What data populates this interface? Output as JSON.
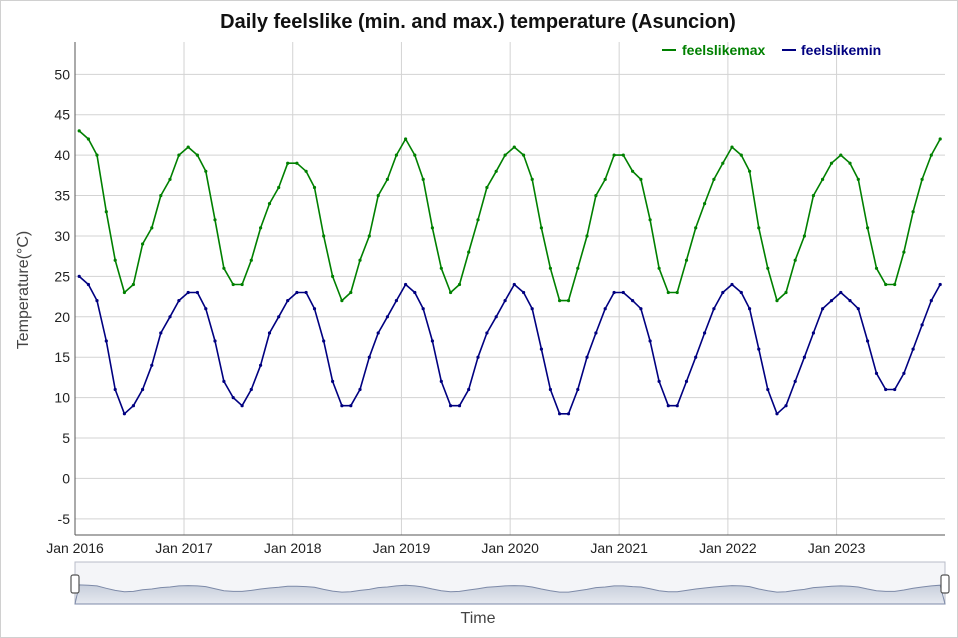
{
  "chart_data": {
    "type": "line",
    "title": "Daily feelslike (min. and max.) temperature (Asuncion)",
    "xlabel": "Time",
    "ylabel": "Temperature(°C)",
    "ylim": [
      -7,
      54
    ],
    "yticks": [
      -5,
      0,
      5,
      10,
      15,
      20,
      25,
      30,
      35,
      40,
      45,
      50
    ],
    "xlim": [
      "2016-01-01",
      "2023-12-31"
    ],
    "xticks": [
      "Jan 2016",
      "Jan 2017",
      "Jan 2018",
      "Jan 2019",
      "Jan 2020",
      "Jan 2021",
      "Jan 2022",
      "Jan 2023"
    ],
    "grid": true,
    "legend_position": "top-right",
    "range_selector": true,
    "series": [
      {
        "name": "feelslikemax",
        "color": "#008000",
        "x": [
          "2016-01",
          "2016-02",
          "2016-03",
          "2016-04",
          "2016-05",
          "2016-06",
          "2016-07",
          "2016-08",
          "2016-09",
          "2016-10",
          "2016-11",
          "2016-12",
          "2017-01",
          "2017-02",
          "2017-03",
          "2017-04",
          "2017-05",
          "2017-06",
          "2017-07",
          "2017-08",
          "2017-09",
          "2017-10",
          "2017-11",
          "2017-12",
          "2018-01",
          "2018-02",
          "2018-03",
          "2018-04",
          "2018-05",
          "2018-06",
          "2018-07",
          "2018-08",
          "2018-09",
          "2018-10",
          "2018-11",
          "2018-12",
          "2019-01",
          "2019-02",
          "2019-03",
          "2019-04",
          "2019-05",
          "2019-06",
          "2019-07",
          "2019-08",
          "2019-09",
          "2019-10",
          "2019-11",
          "2019-12",
          "2020-01",
          "2020-02",
          "2020-03",
          "2020-04",
          "2020-05",
          "2020-06",
          "2020-07",
          "2020-08",
          "2020-09",
          "2020-10",
          "2020-11",
          "2020-12",
          "2021-01",
          "2021-02",
          "2021-03",
          "2021-04",
          "2021-05",
          "2021-06",
          "2021-07",
          "2021-08",
          "2021-09",
          "2021-10",
          "2021-11",
          "2021-12",
          "2022-01",
          "2022-02",
          "2022-03",
          "2022-04",
          "2022-05",
          "2022-06",
          "2022-07",
          "2022-08",
          "2022-09",
          "2022-10",
          "2022-11",
          "2022-12",
          "2023-01",
          "2023-02",
          "2023-03",
          "2023-04",
          "2023-05",
          "2023-06",
          "2023-07",
          "2023-08",
          "2023-09",
          "2023-10",
          "2023-11",
          "2023-12"
        ],
        "values": [
          43,
          42,
          40,
          33,
          27,
          23,
          24,
          29,
          31,
          35,
          37,
          40,
          41,
          40,
          38,
          32,
          26,
          24,
          24,
          27,
          31,
          34,
          36,
          39,
          39,
          38,
          36,
          30,
          25,
          22,
          23,
          27,
          30,
          35,
          37,
          40,
          42,
          40,
          37,
          31,
          26,
          23,
          24,
          28,
          32,
          36,
          38,
          40,
          41,
          40,
          37,
          31,
          26,
          22,
          22,
          26,
          30,
          35,
          37,
          40,
          40,
          38,
          37,
          32,
          26,
          23,
          23,
          27,
          31,
          34,
          37,
          39,
          41,
          40,
          38,
          31,
          26,
          22,
          23,
          27,
          30,
          35,
          37,
          39,
          40,
          39,
          37,
          31,
          26,
          24,
          24,
          28,
          33,
          37,
          40,
          42
        ]
      },
      {
        "name": "feelslikemin",
        "color": "#000080",
        "x": [
          "2016-01",
          "2016-02",
          "2016-03",
          "2016-04",
          "2016-05",
          "2016-06",
          "2016-07",
          "2016-08",
          "2016-09",
          "2016-10",
          "2016-11",
          "2016-12",
          "2017-01",
          "2017-02",
          "2017-03",
          "2017-04",
          "2017-05",
          "2017-06",
          "2017-07",
          "2017-08",
          "2017-09",
          "2017-10",
          "2017-11",
          "2017-12",
          "2018-01",
          "2018-02",
          "2018-03",
          "2018-04",
          "2018-05",
          "2018-06",
          "2018-07",
          "2018-08",
          "2018-09",
          "2018-10",
          "2018-11",
          "2018-12",
          "2019-01",
          "2019-02",
          "2019-03",
          "2019-04",
          "2019-05",
          "2019-06",
          "2019-07",
          "2019-08",
          "2019-09",
          "2019-10",
          "2019-11",
          "2019-12",
          "2020-01",
          "2020-02",
          "2020-03",
          "2020-04",
          "2020-05",
          "2020-06",
          "2020-07",
          "2020-08",
          "2020-09",
          "2020-10",
          "2020-11",
          "2020-12",
          "2021-01",
          "2021-02",
          "2021-03",
          "2021-04",
          "2021-05",
          "2021-06",
          "2021-07",
          "2021-08",
          "2021-09",
          "2021-10",
          "2021-11",
          "2021-12",
          "2022-01",
          "2022-02",
          "2022-03",
          "2022-04",
          "2022-05",
          "2022-06",
          "2022-07",
          "2022-08",
          "2022-09",
          "2022-10",
          "2022-11",
          "2022-12",
          "2023-01",
          "2023-02",
          "2023-03",
          "2023-04",
          "2023-05",
          "2023-06",
          "2023-07",
          "2023-08",
          "2023-09",
          "2023-10",
          "2023-11",
          "2023-12"
        ],
        "values": [
          25,
          24,
          22,
          17,
          11,
          8,
          9,
          11,
          14,
          18,
          20,
          22,
          23,
          23,
          21,
          17,
          12,
          10,
          9,
          11,
          14,
          18,
          20,
          22,
          23,
          23,
          21,
          17,
          12,
          9,
          9,
          11,
          15,
          18,
          20,
          22,
          24,
          23,
          21,
          17,
          12,
          9,
          9,
          11,
          15,
          18,
          20,
          22,
          24,
          23,
          21,
          16,
          11,
          8,
          8,
          11,
          15,
          18,
          21,
          23,
          23,
          22,
          21,
          17,
          12,
          9,
          9,
          12,
          15,
          18,
          21,
          23,
          24,
          23,
          21,
          16,
          11,
          8,
          9,
          12,
          15,
          18,
          21,
          22,
          23,
          22,
          21,
          17,
          13,
          11,
          11,
          13,
          16,
          19,
          22,
          24
        ]
      }
    ]
  }
}
